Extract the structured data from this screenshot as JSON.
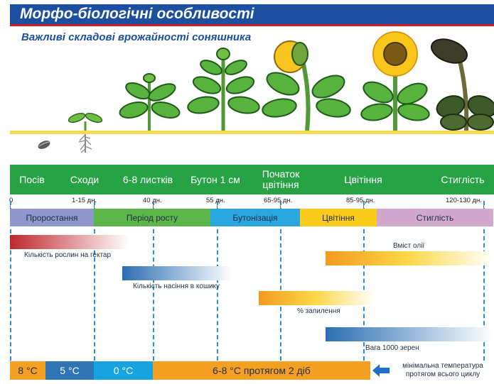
{
  "header": {
    "title": "Морфо-біологічні особливості"
  },
  "subtitle": "Важливі складові врожайності соняшника",
  "stages": [
    {
      "label": "Посів"
    },
    {
      "label": "Сходи"
    },
    {
      "label": "6-8 листків"
    },
    {
      "label": "Бутон 1 см"
    },
    {
      "label": "Початок цвітіння"
    },
    {
      "label": "Цвітіння"
    },
    {
      "label": "Стиглість"
    }
  ],
  "days": [
    "0",
    "1-15 дн.",
    "40 дн.",
    "55 дн.",
    "65-95 дн.",
    "85-95 дн.",
    "120-130 дн."
  ],
  "periods": [
    {
      "label": "Проростання",
      "color": "#8f97cc"
    },
    {
      "label": "Період росту",
      "color": "#5cb64a"
    },
    {
      "label": "Бутонізація",
      "color": "#2ba7e0"
    },
    {
      "label": "Цвітіння",
      "color": "#fbcc1d"
    },
    {
      "label": "Стиглість",
      "color": "#d3a8cf"
    }
  ],
  "factors": [
    {
      "label": "Кількість рослин на гектар"
    },
    {
      "label": "Вміст олії"
    },
    {
      "label": "Кількість насіння в кошику"
    },
    {
      "label": "% запилення"
    },
    {
      "label": "Вага 1000 зерен"
    }
  ],
  "temperatures": [
    {
      "label": "8 °C"
    },
    {
      "label": "5 °C"
    },
    {
      "label": "0 °C"
    },
    {
      "label": "6-8 °C протягом 2 діб"
    }
  ],
  "temperature_note": "мінімальна температура протягом всього циклу",
  "colors": {
    "banner_blue": "#1c4fa0",
    "banner_red": "#d21c24",
    "stage_green": "#27a345",
    "dash_blue": "#2d8fd5",
    "temp_orange": "#f4a023"
  }
}
